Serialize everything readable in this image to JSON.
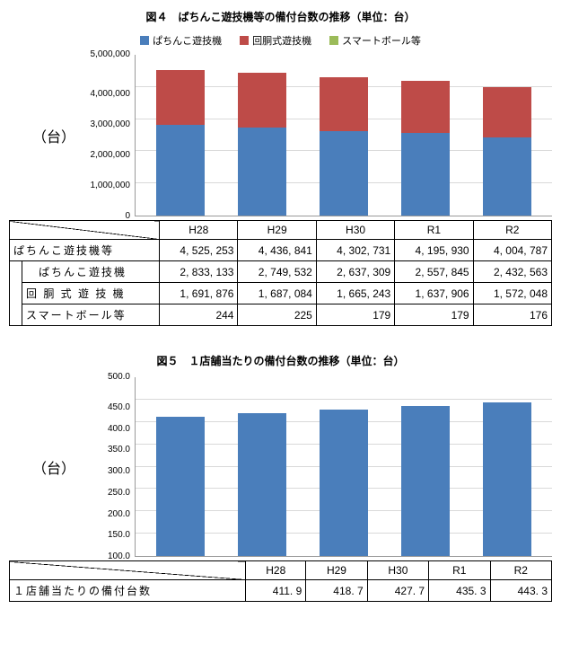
{
  "chart1": {
    "title": "図４　ぱちんこ遊技機等の備付台数の推移（単位：台）",
    "title_fontsize": 12,
    "legend": [
      {
        "label": "ぱちんこ遊技機",
        "color": "#4a7ebb"
      },
      {
        "label": "回胴式遊技機",
        "color": "#be4b48"
      },
      {
        "label": "スマートボール等",
        "color": "#9bbb59"
      }
    ],
    "y_unit": "（台）",
    "y_ticks": [
      "5,000,000",
      "4,000,000",
      "3,000,000",
      "2,000,000",
      "1,000,000",
      "0"
    ],
    "y_max": 5000000,
    "categories": [
      "H28",
      "H29",
      "H30",
      "R1",
      "R2"
    ],
    "series": {
      "pachinko": [
        2833133,
        2749532,
        2637309,
        2557845,
        2432563
      ],
      "kaidou": [
        1691876,
        1687084,
        1665243,
        1637906,
        1572048
      ],
      "smart": [
        244,
        225,
        179,
        179,
        176
      ]
    },
    "table": {
      "row_total_label": "ぱちんこ遊技機等",
      "row_total": [
        "4, 525, 253",
        "4, 436, 841",
        "4, 302, 731",
        "4, 195, 930",
        "4, 004, 787"
      ],
      "row_p_label": "ぱちんこ遊技機",
      "row_p": [
        "2, 833, 133",
        "2, 749, 532",
        "2, 637, 309",
        "2, 557, 845",
        "2, 432, 563"
      ],
      "row_k_label": "回 胴 式 遊 技 機",
      "row_k": [
        "1, 691, 876",
        "1, 687, 084",
        "1, 665, 243",
        "1, 637, 906",
        "1, 572, 048"
      ],
      "row_s_label": "スマートボール等",
      "row_s": [
        "244",
        "225",
        "179",
        "179",
        "176"
      ]
    },
    "tick_fontsize": 10,
    "legend_fontsize": 11,
    "grid_color": "#d9d9d9"
  },
  "chart2": {
    "title": "図５　１店舗当たりの備付台数の推移（単位：台）",
    "title_fontsize": 12,
    "y_unit": "（台）",
    "y_ticks": [
      "500.0",
      "450.0",
      "400.0",
      "350.0",
      "300.0",
      "250.0",
      "200.0",
      "150.0",
      "100.0"
    ],
    "y_min": 100,
    "y_max": 500,
    "categories": [
      "H28",
      "H29",
      "H30",
      "R1",
      "R2"
    ],
    "values": [
      411.9,
      418.7,
      427.7,
      435.3,
      443.3
    ],
    "bar_color": "#4a7ebb",
    "table": {
      "row_label": "１店舗当たりの備付台数",
      "row": [
        "411. 9",
        "418. 7",
        "427. 7",
        "435. 3",
        "443. 3"
      ]
    },
    "tick_fontsize": 10,
    "grid_color": "#d9d9d9"
  }
}
